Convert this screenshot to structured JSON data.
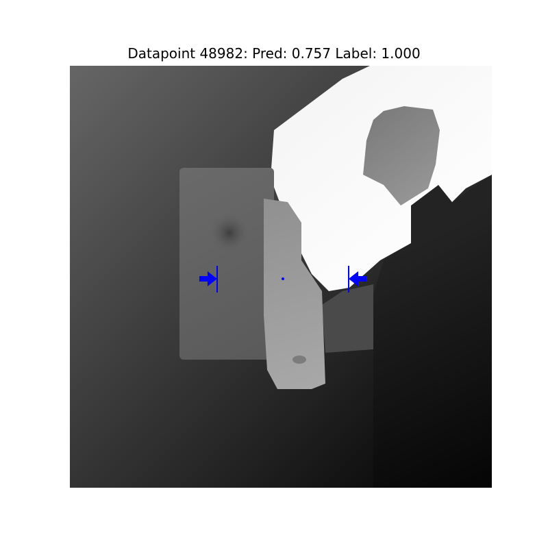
{
  "figure": {
    "title": "Datapoint 48982: Pred: 0.757 Label: 1.000"
  },
  "image": {
    "kind": "depth-map",
    "colormap": "grayscale",
    "background_gradient": [
      "#6a6a6a",
      "#000000"
    ]
  },
  "grasp": {
    "marker_color": "#0000ff",
    "markers": [
      "left-jaw-arrow",
      "right-jaw-arrow",
      "grasp-center-dot"
    ]
  }
}
